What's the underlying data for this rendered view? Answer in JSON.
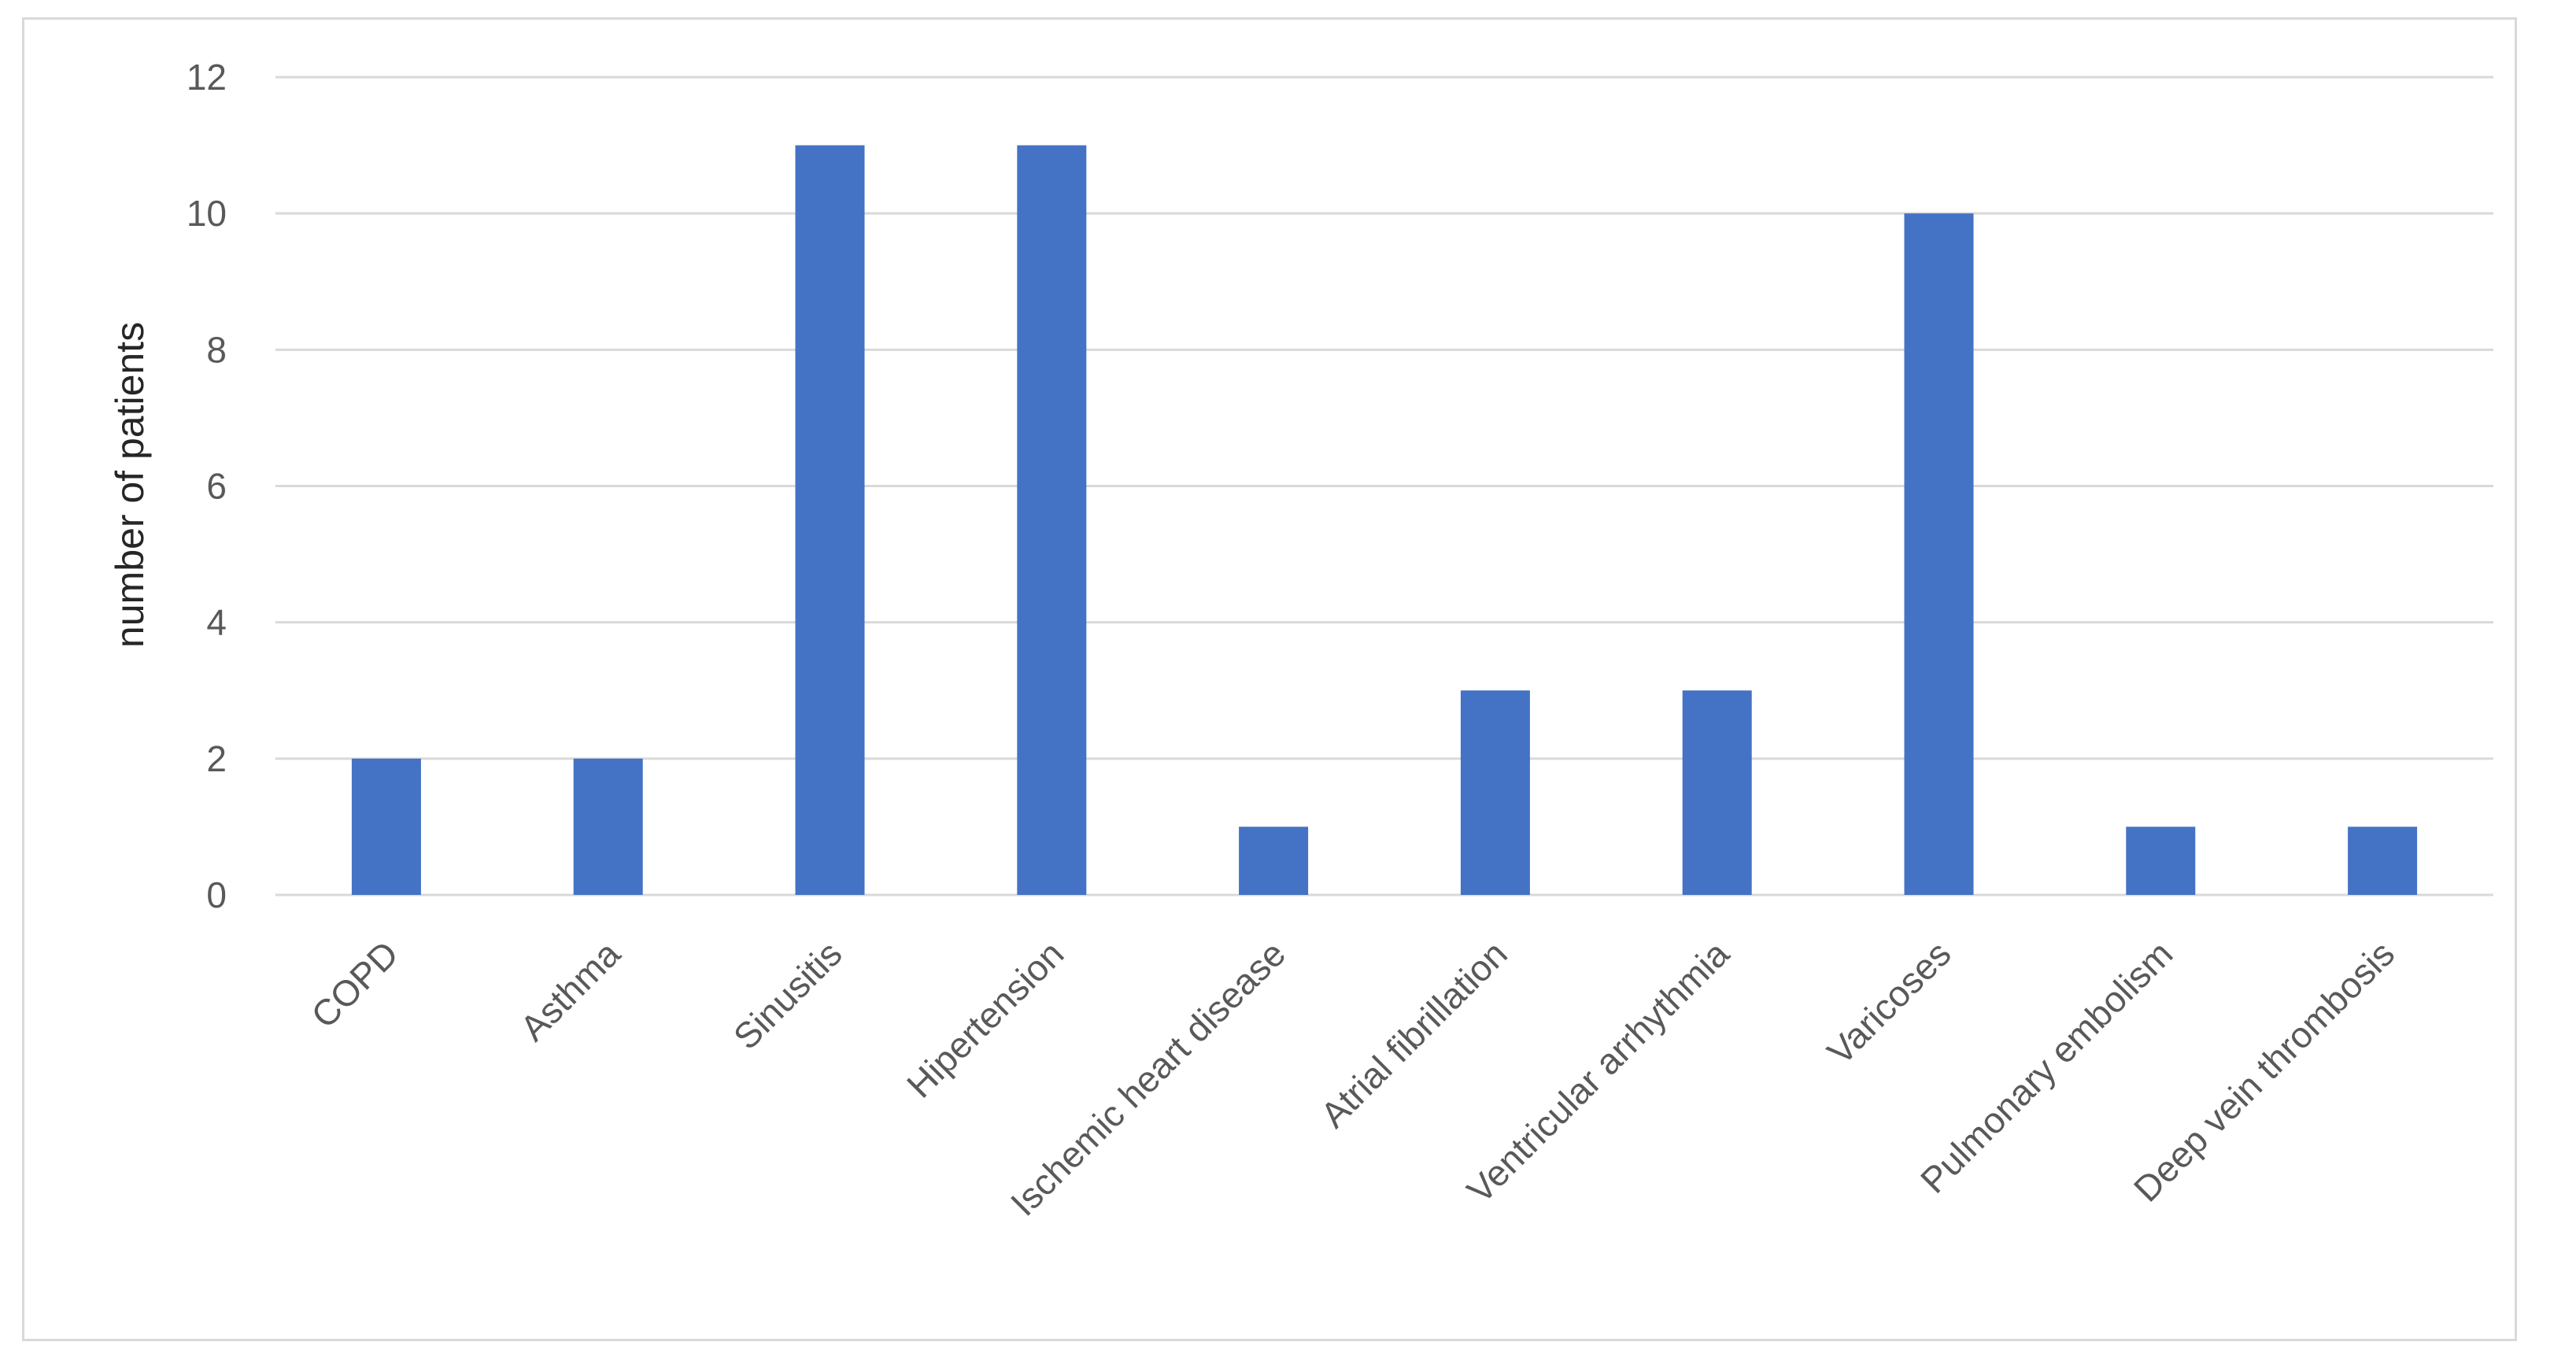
{
  "chart_data": {
    "type": "bar",
    "title": "",
    "xlabel": "",
    "ylabel": "number of patients",
    "categories": [
      "COPD",
      "Asthma",
      "Sinusitis",
      "Hipertension",
      "Ischemic heart disease",
      "Atrial fibrillation",
      "Ventricular arrhythmia",
      "Varicoses",
      "Pulmonary embolism",
      "Deep vein thrombosis"
    ],
    "values": [
      2,
      2,
      11,
      11,
      1,
      3,
      3,
      10,
      1,
      1
    ],
    "ylim": [
      0,
      12
    ],
    "yticks": [
      "0",
      "2",
      "4",
      "6",
      "8",
      "10",
      "12"
    ],
    "grid": true,
    "legend": "none",
    "colors": {
      "bar": "#4472c4",
      "grid": "#d9d9d9",
      "tick_text": "#595959",
      "axis_title": "#262626"
    }
  }
}
